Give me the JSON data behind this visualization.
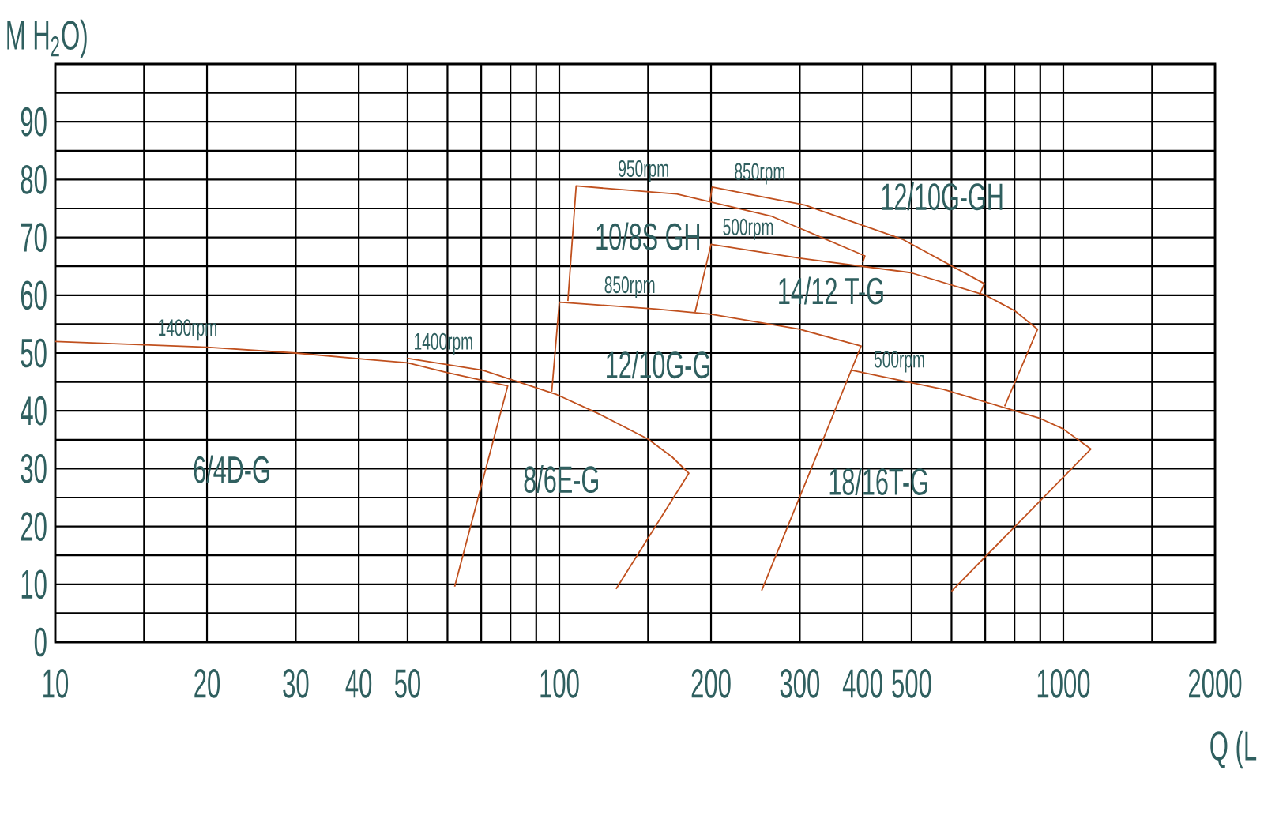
{
  "chart_data": {
    "type": "line",
    "xlabel": "Q (L",
    "ylabel": "M H$_{2}$O)",
    "log": "x",
    "grid": true,
    "marker": "none",
    "xlim": [
      10,
      2000
    ],
    "ylim": [
      0,
      100
    ],
    "xticks": [
      10,
      {
        "value": 15,
        "label": null
      },
      20,
      30,
      40,
      50,
      {
        "value": 60,
        "label": null
      },
      {
        "value": 70,
        "label": null
      },
      {
        "value": 80,
        "label": null
      },
      {
        "value": 90,
        "label": null
      },
      100,
      {
        "value": 150,
        "label": null
      },
      200,
      300,
      400,
      500,
      {
        "value": 600,
        "label": null
      },
      {
        "value": 700,
        "label": null
      },
      {
        "value": 800,
        "label": null
      },
      {
        "value": 900,
        "label": null
      },
      1000,
      {
        "value": 1500,
        "label": null
      },
      2000
    ],
    "yticks": [
      0,
      {
        "value": 5,
        "label": null
      },
      10,
      {
        "value": 15,
        "label": null
      },
      20,
      {
        "value": 25,
        "label": null
      },
      30,
      {
        "value": 35,
        "label": null
      },
      40,
      {
        "value": 45,
        "label": null
      },
      50,
      {
        "value": 55,
        "label": null
      },
      60,
      {
        "value": 65,
        "label": null
      },
      70,
      {
        "value": 75,
        "label": null
      },
      80,
      {
        "value": 85,
        "label": null
      },
      90,
      {
        "value": 95,
        "label": null
      }
    ],
    "series": [
      {
        "color": "#c0501e",
        "x": [
          10,
          20,
          30,
          41.6,
          50,
          60,
          79,
          62
        ],
        "values": [
          52,
          51,
          50,
          48.9,
          48.3,
          46.6,
          44.3,
          9.6
        ]
      },
      {
        "color": "#c0501e",
        "x": [
          49.9,
          70.6,
          98.9,
          119.7,
          150,
          167.5,
          180.7,
          129.6
        ],
        "values": [
          49.1,
          47,
          42.8,
          39.5,
          35.1,
          32,
          29.2,
          9.2
        ]
      },
      {
        "color": "#c0501e",
        "x": [
          96.6,
          100,
          156,
          200,
          300,
          397,
          252
        ],
        "values": [
          43.3,
          58.8,
          57.6,
          56.7,
          54.1,
          51.2,
          8.9
        ]
      },
      {
        "color": "#c0501e",
        "x": [
          104,
          108,
          171,
          263,
          404,
          400
        ],
        "values": [
          59,
          78.9,
          77.5,
          73.7,
          66.8,
          65.7
        ]
      },
      {
        "color": "#c0501e",
        "x": [
          199,
          201,
          307,
          479,
          697,
          682
        ],
        "values": [
          76.2,
          78.7,
          75.6,
          69.7,
          62,
          60.1
        ]
      },
      {
        "color": "#c0501e",
        "x": [
          186,
          200,
          300,
          498,
          701,
          801,
          889,
          765
        ],
        "values": [
          57.1,
          68.8,
          66.4,
          63.9,
          60,
          57.3,
          54.1,
          40.8
        ]
      },
      {
        "color": "#c0501e",
        "x": [
          381,
          579,
          899,
          998,
          1134,
          600
        ],
        "values": [
          47,
          43.7,
          38.7,
          36.9,
          33.4,
          8.8
        ]
      }
    ],
    "annotations": [
      "1400rpm",
      "1400rpm",
      "950rpm",
      "850rpm",
      "500rpm",
      "850rpm",
      "500rpm",
      "6/4D-G",
      "8/6E-G",
      "12/10G-G",
      "10/8S GH",
      "14/12 T-G",
      "18/16T-G",
      "12/10G-GH"
    ]
  }
}
